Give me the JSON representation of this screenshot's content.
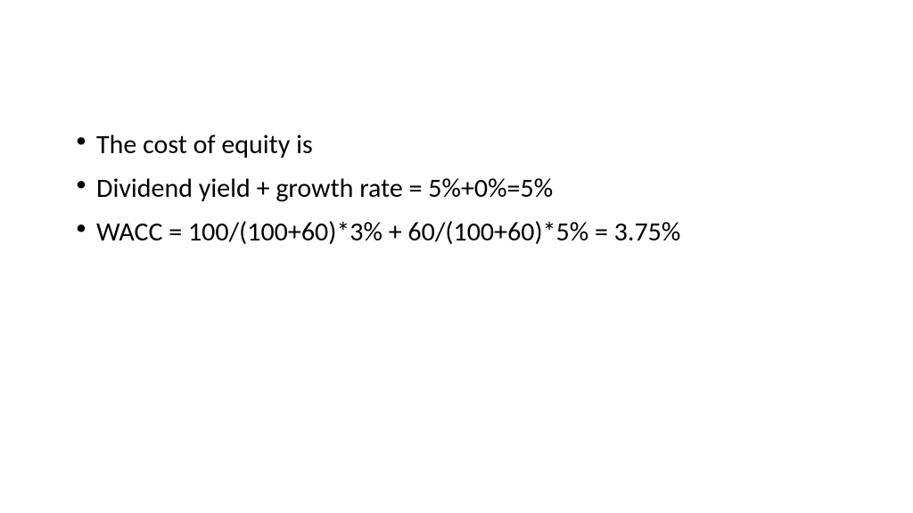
{
  "slide": {
    "bullets": [
      "The cost of equity is",
      "Dividend yield + growth rate = 5%+0%=5%",
      "WACC = 100/(100+60)*3% + 60/(100+60)*5% = 3.75%"
    ],
    "background_color": "#ffffff",
    "text_color": "#000000",
    "font_size": 30,
    "font_family": "Calibri"
  }
}
